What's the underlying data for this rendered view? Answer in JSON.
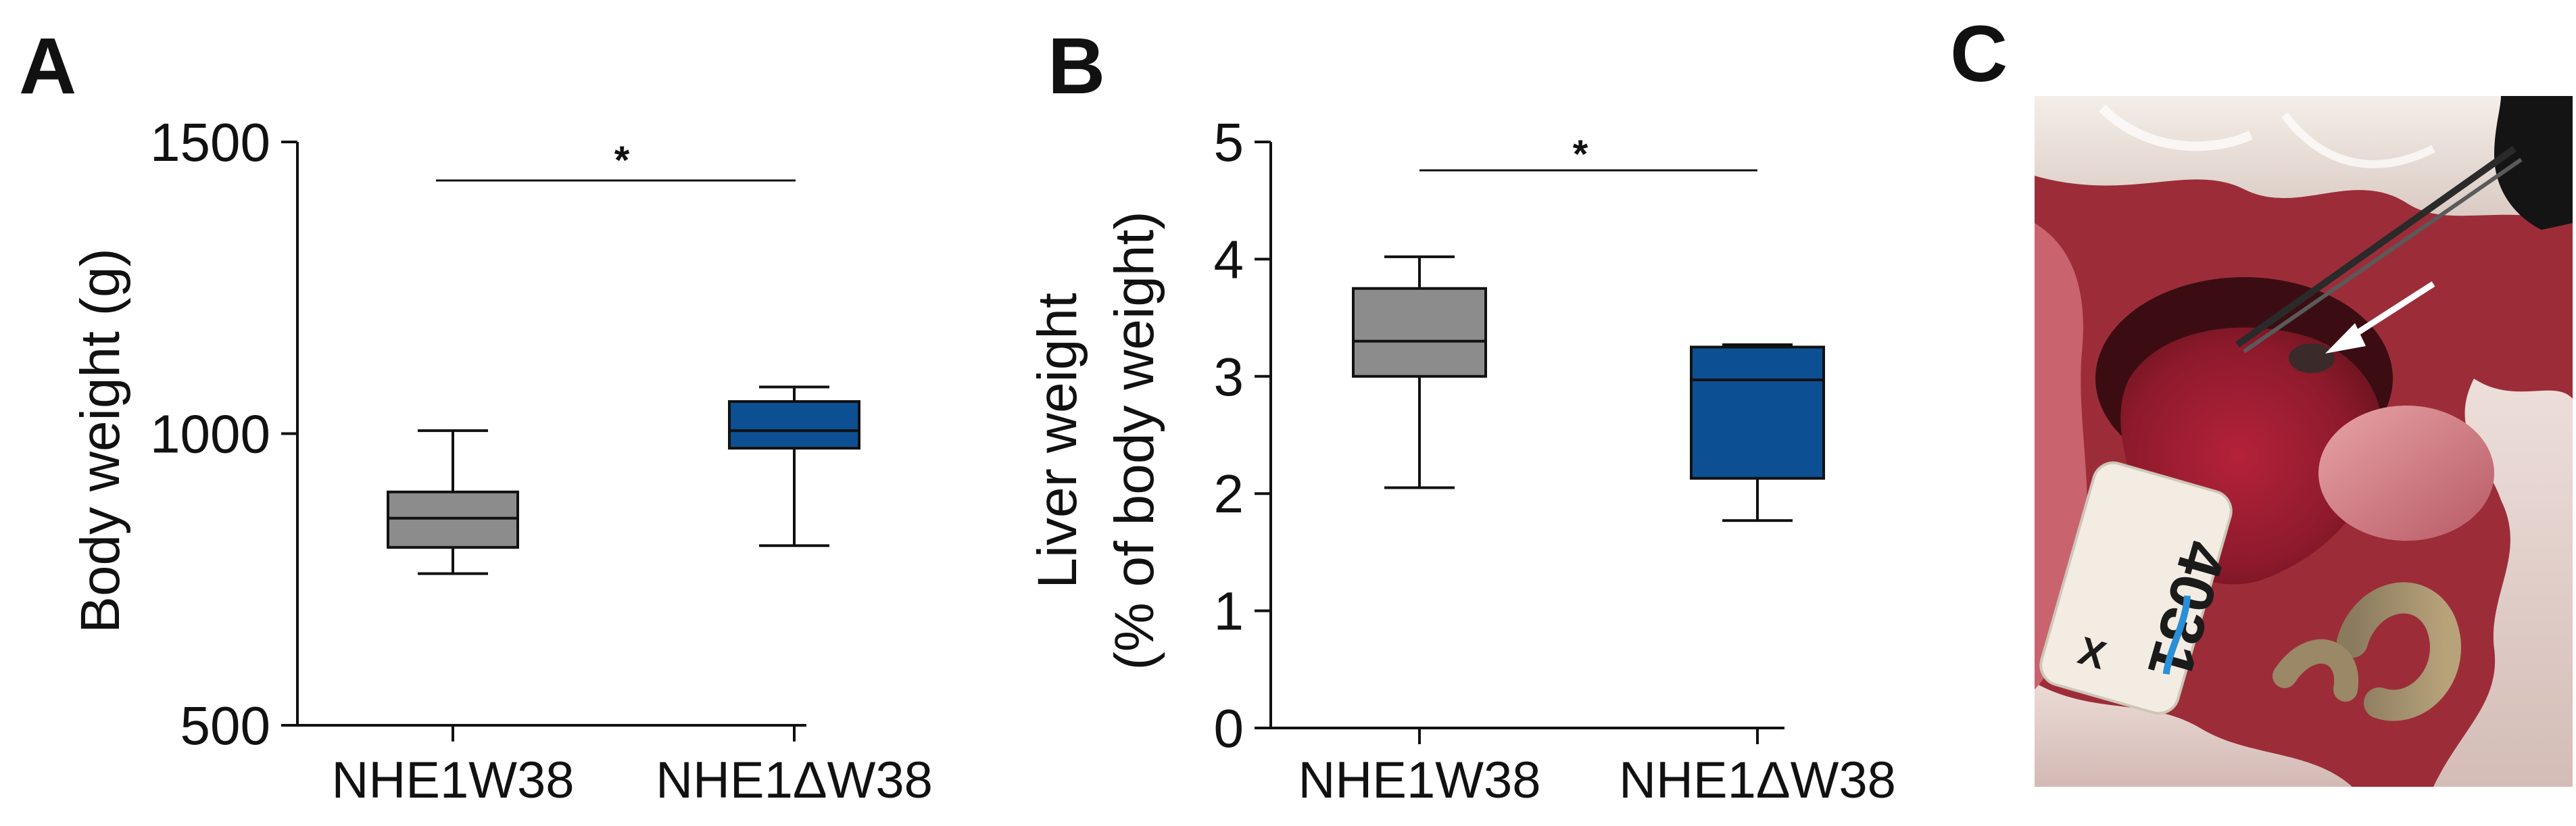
{
  "panels": [
    {
      "letter": "A",
      "chart_data": {
        "type": "box",
        "title": "",
        "xlabel": "",
        "ylabel": "Body weight (g)",
        "ylim": [
          500,
          1500
        ],
        "yticks": [
          500,
          1000,
          1500
        ],
        "categories": [
          "NHE1W38",
          "NHE1ΔW38"
        ],
        "boxes": [
          {
            "name": "NHE1W38",
            "min": 760,
            "q1": 805,
            "median": 855,
            "q3": 900,
            "max": 1005,
            "color": "#8c8c8c"
          },
          {
            "name": "NHE1ΔW38",
            "min": 808,
            "q1": 975,
            "median": 1005,
            "q3": 1055,
            "max": 1080,
            "color": "#0d4f93"
          }
        ],
        "significance": {
          "label": "*",
          "between": [
            0,
            1
          ]
        }
      }
    },
    {
      "letter": "B",
      "chart_data": {
        "type": "box",
        "title": "",
        "xlabel": "",
        "ylabel": [
          "Liver weight",
          "(% of body weight)"
        ],
        "ylim": [
          0,
          5
        ],
        "yticks": [
          0,
          1,
          2,
          3,
          4,
          5
        ],
        "categories": [
          "NHE1W38",
          "NHE1ΔW38"
        ],
        "boxes": [
          {
            "name": "NHE1W38",
            "min": 2.05,
            "q1": 3.0,
            "median": 3.3,
            "q3": 3.75,
            "max": 4.02,
            "color": "#8c8c8c"
          },
          {
            "name": "NHE1ΔW38",
            "min": 1.77,
            "q1": 2.13,
            "median": 2.97,
            "q3": 3.25,
            "max": 3.27,
            "color": "#0d4f93"
          }
        ],
        "significance": {
          "label": "*",
          "between": [
            0,
            1
          ]
        }
      }
    }
  ],
  "photo": {
    "letter": "C",
    "tag_number": "4031",
    "tag_mark": "X"
  }
}
